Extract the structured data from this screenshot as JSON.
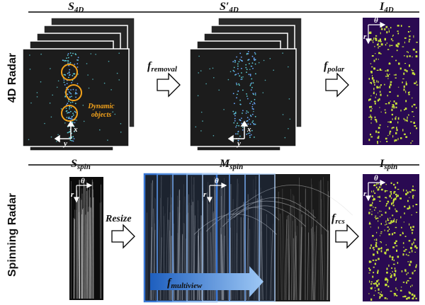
{
  "rows": {
    "radar4d": {
      "title": "4D Radar"
    },
    "spinning": {
      "title": "Spinning Radar"
    }
  },
  "labels": {
    "s4d": {
      "base": "S",
      "sub": "4D"
    },
    "s4d_prime": {
      "base": "S′",
      "sub": "4D"
    },
    "i4d": {
      "base": "I",
      "sub": "4D"
    },
    "sspin": {
      "base": "S",
      "sub": "spin"
    },
    "mspin": {
      "base": "M",
      "sub": "spin"
    },
    "ispin": {
      "base": "I",
      "sub": "spin"
    }
  },
  "operators": {
    "f_removal": {
      "base": "f",
      "sub": "removal"
    },
    "f_polar": {
      "base": "f",
      "sub": "polar"
    },
    "resize": "Resize",
    "f_rcs": {
      "base": "f",
      "sub": "rcs"
    },
    "f_multiview": {
      "base": "f",
      "sub": "multiview"
    }
  },
  "annotations": {
    "dynamic_objects_line1": "Dynamic",
    "dynamic_objects_line2": "objects"
  },
  "axes": {
    "x": "x",
    "y": "y",
    "r": "r",
    "theta": "θ"
  },
  "colors": {
    "stack_bg": "#1c1c1c",
    "point_cyan": "#5fd0d8",
    "point_blue": "#6aa8ff",
    "circle_orange": "#f3a21b",
    "polar_bg": "#2a0a52",
    "polar_points": "#c9e33a",
    "multiview_arrow": "#2e6fd0"
  }
}
